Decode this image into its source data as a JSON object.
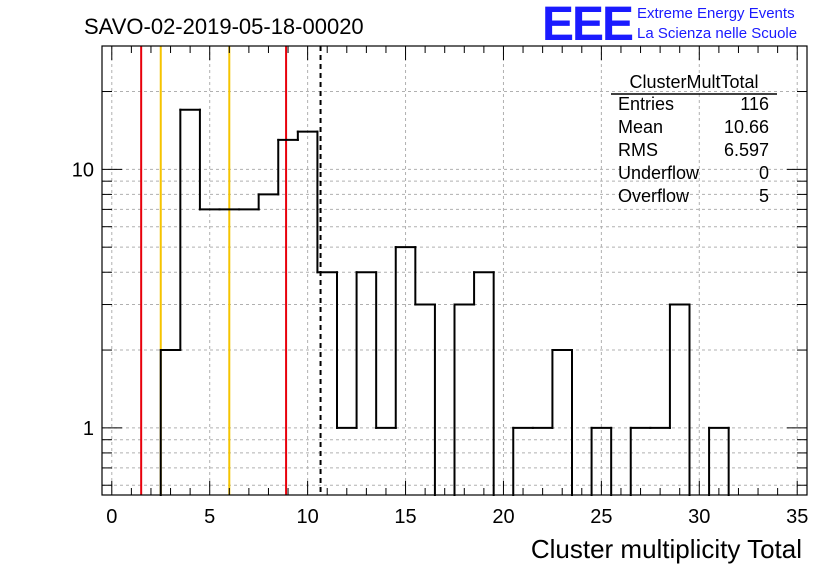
{
  "header": {
    "run_title": "SAVO-02-2019-05-18-00020",
    "logo_letters": "EEE",
    "logo_line1": "Extreme Energy Events",
    "logo_line2": "La Scienza nelle Scuole"
  },
  "stats_box": {
    "title": "ClusterMultTotal",
    "rows": [
      {
        "label": "Entries",
        "value": "116"
      },
      {
        "label": "Mean",
        "value": "10.66"
      },
      {
        "label": "RMS",
        "value": "6.597"
      },
      {
        "label": "Underflow",
        "value": "0"
      },
      {
        "label": "Overflow",
        "value": "5"
      }
    ]
  },
  "colors": {
    "histogram": "#000000",
    "red_lines": "#e8000b",
    "yellow_lines": "#f5c400",
    "mean_line": "#000000",
    "grid": "#b0b0b0"
  },
  "chart_data": {
    "type": "histogram",
    "xlabel": "Cluster multiplicity Total",
    "ylabel": "",
    "xlim": [
      -0.5,
      35.5
    ],
    "ylim": [
      0.55,
      30
    ],
    "y_scale": "log",
    "grid": true,
    "x_ticks": [
      0,
      5,
      10,
      15,
      20,
      25,
      30,
      35
    ],
    "y_ticks": [
      1,
      10
    ],
    "bins": [
      {
        "x": 0,
        "count": 0
      },
      {
        "x": 1,
        "count": 0
      },
      {
        "x": 2,
        "count": 0
      },
      {
        "x": 3,
        "count": 2
      },
      {
        "x": 4,
        "count": 17
      },
      {
        "x": 5,
        "count": 7
      },
      {
        "x": 6,
        "count": 7
      },
      {
        "x": 7,
        "count": 7
      },
      {
        "x": 8,
        "count": 8
      },
      {
        "x": 9,
        "count": 13
      },
      {
        "x": 10,
        "count": 14
      },
      {
        "x": 11,
        "count": 4
      },
      {
        "x": 12,
        "count": 1
      },
      {
        "x": 13,
        "count": 4
      },
      {
        "x": 14,
        "count": 1
      },
      {
        "x": 15,
        "count": 5
      },
      {
        "x": 16,
        "count": 3
      },
      {
        "x": 17,
        "count": 0
      },
      {
        "x": 18,
        "count": 3
      },
      {
        "x": 19,
        "count": 4
      },
      {
        "x": 20,
        "count": 0
      },
      {
        "x": 21,
        "count": 1
      },
      {
        "x": 22,
        "count": 1
      },
      {
        "x": 23,
        "count": 2
      },
      {
        "x": 24,
        "count": 0
      },
      {
        "x": 25,
        "count": 1
      },
      {
        "x": 26,
        "count": 0
      },
      {
        "x": 27,
        "count": 1
      },
      {
        "x": 28,
        "count": 1
      },
      {
        "x": 29,
        "count": 3
      },
      {
        "x": 30,
        "count": 0
      },
      {
        "x": 31,
        "count": 1
      },
      {
        "x": 32,
        "count": 0
      },
      {
        "x": 33,
        "count": 0
      },
      {
        "x": 34,
        "count": 0
      },
      {
        "x": 35,
        "count": 0
      }
    ],
    "vertical_lines": [
      {
        "x": 1.5,
        "color": "red"
      },
      {
        "x": 2.5,
        "color": "yellow"
      },
      {
        "x": 6.0,
        "color": "yellow"
      },
      {
        "x": 8.9,
        "color": "red"
      },
      {
        "x": 10.66,
        "color": "black",
        "style": "dashed"
      }
    ]
  }
}
